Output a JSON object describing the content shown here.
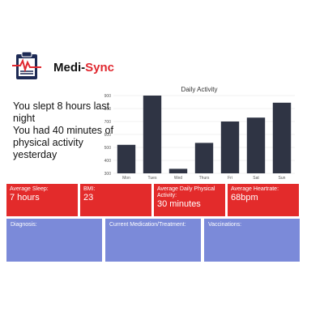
{
  "app": {
    "name_part1": "Medi-",
    "name_part2": "Sync"
  },
  "summary": {
    "sleep_text": "You slept 8 hours last night",
    "activity_text": "You had 40 minutes of physical activity yesterday"
  },
  "chart_data": {
    "type": "bar",
    "title": "Daily Activity",
    "categories": [
      "Mon",
      "Tues",
      "Wed",
      "Thurs",
      "Fri",
      "Sat",
      "Sun"
    ],
    "values": [
      520,
      900,
      335,
      535,
      700,
      730,
      845
    ],
    "ylim": [
      300,
      900
    ],
    "yticks": [
      300,
      400,
      500,
      600,
      700,
      800,
      900
    ],
    "ytick_labels": [
      "300",
      "400",
      "500",
      "600",
      "700",
      "800",
      "900"
    ],
    "xlabel": "",
    "ylabel": "",
    "bar_color": "#2f3444"
  },
  "stats": {
    "sleep": {
      "label": "Average Sleep:",
      "value": "7 hours"
    },
    "bmi": {
      "label": "BMI:",
      "value": "23"
    },
    "activity": {
      "label": "Average Daily Physical Activity:",
      "value": "30 minutes"
    },
    "heartrate": {
      "label": "Average Heartrate:",
      "value": "68bpm"
    }
  },
  "panels": {
    "diagnosis": "Diagnosis:",
    "medication": "Current Medication/Treatment:",
    "vaccinations": "Vaccinations:"
  },
  "colors": {
    "accent": "#e0282f",
    "stat_bg": "#e32b2b",
    "panel_bg": "#7b8ad9",
    "bar": "#2f3444"
  }
}
